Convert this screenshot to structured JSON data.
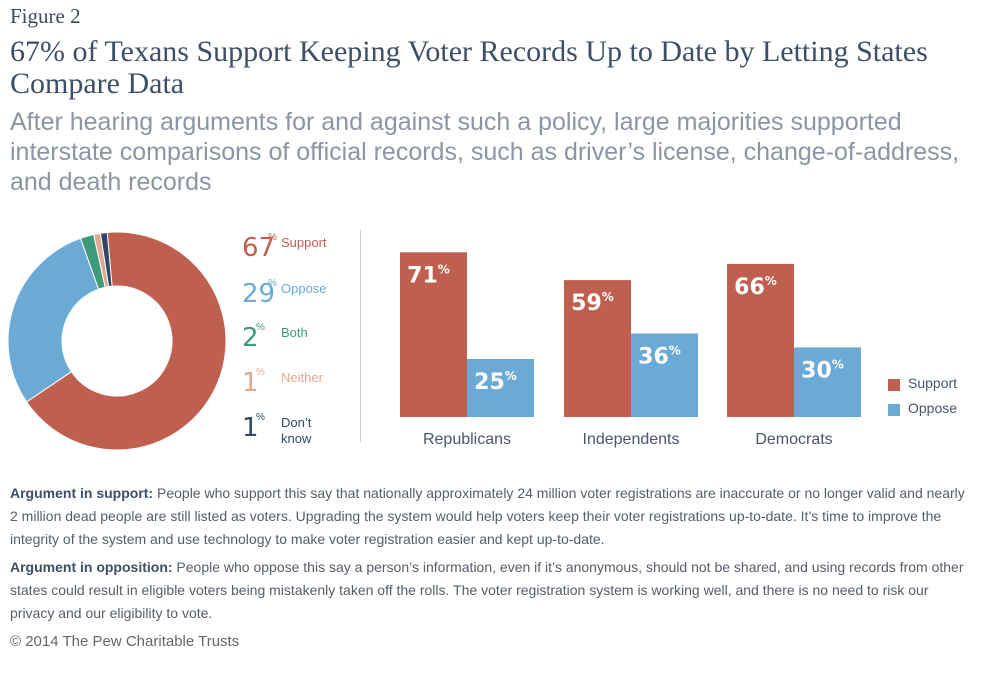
{
  "figure_label": "Figure 2",
  "title": "67% of Texans Support Keeping Voter Records Up to Date by Letting States Compare Data",
  "subtitle": "After hearing arguments for and against such a policy, large majorities supported interstate comparisons of official records, such as driver’s license, change-of-address, and death records",
  "colors": {
    "support": "#bf5f4f",
    "oppose": "#6aaad4",
    "both": "#3f9a7a",
    "neither": "#e0a891",
    "dont_know": "#2e4766"
  },
  "chart_data": [
    {
      "type": "pie",
      "variant": "donut",
      "slices": [
        {
          "label": "Support",
          "value": 67,
          "color_key": "support"
        },
        {
          "label": "Oppose",
          "value": 29,
          "color_key": "oppose"
        },
        {
          "label": "Both",
          "value": 2,
          "color_key": "both"
        },
        {
          "label": "Neither",
          "value": 1,
          "color_key": "neither"
        },
        {
          "label": "Don’t\nknow",
          "value": 1,
          "color_key": "dont_know"
        }
      ],
      "pct_symbol": "%"
    },
    {
      "type": "bar",
      "categories": [
        "Republicans",
        "Independents",
        "Democrats"
      ],
      "series": [
        {
          "name": "Support",
          "values": [
            71,
            59,
            66
          ],
          "color_key": "support"
        },
        {
          "name": "Oppose",
          "values": [
            25,
            36,
            30
          ],
          "color_key": "oppose"
        }
      ],
      "value_suffix": "%",
      "ylim": [
        0,
        100
      ],
      "legend": "right"
    }
  ],
  "argument_support": {
    "label": "Argument in support:",
    "text": " People who support this say that nationally approximately 24 million voter registrations are inaccurate or no longer valid and nearly 2 million dead people are still listed as voters. Upgrading the system would help voters keep their voter registrations up-to-date. It’s time to improve the integrity of the system and use technology to make voter registration easier and kept up-to-date."
  },
  "argument_opposition": {
    "label": "Argument in opposition:",
    "text": " People who oppose this say a person’s information, even if it’s anonymous, should not be shared, and using records from other states could result in eligible voters being mistakenly taken off the rolls. The voter registration system is working well, and there is no need to risk our privacy and our eligibility to vote."
  },
  "copyright": "© 2014 The Pew Charitable Trusts"
}
